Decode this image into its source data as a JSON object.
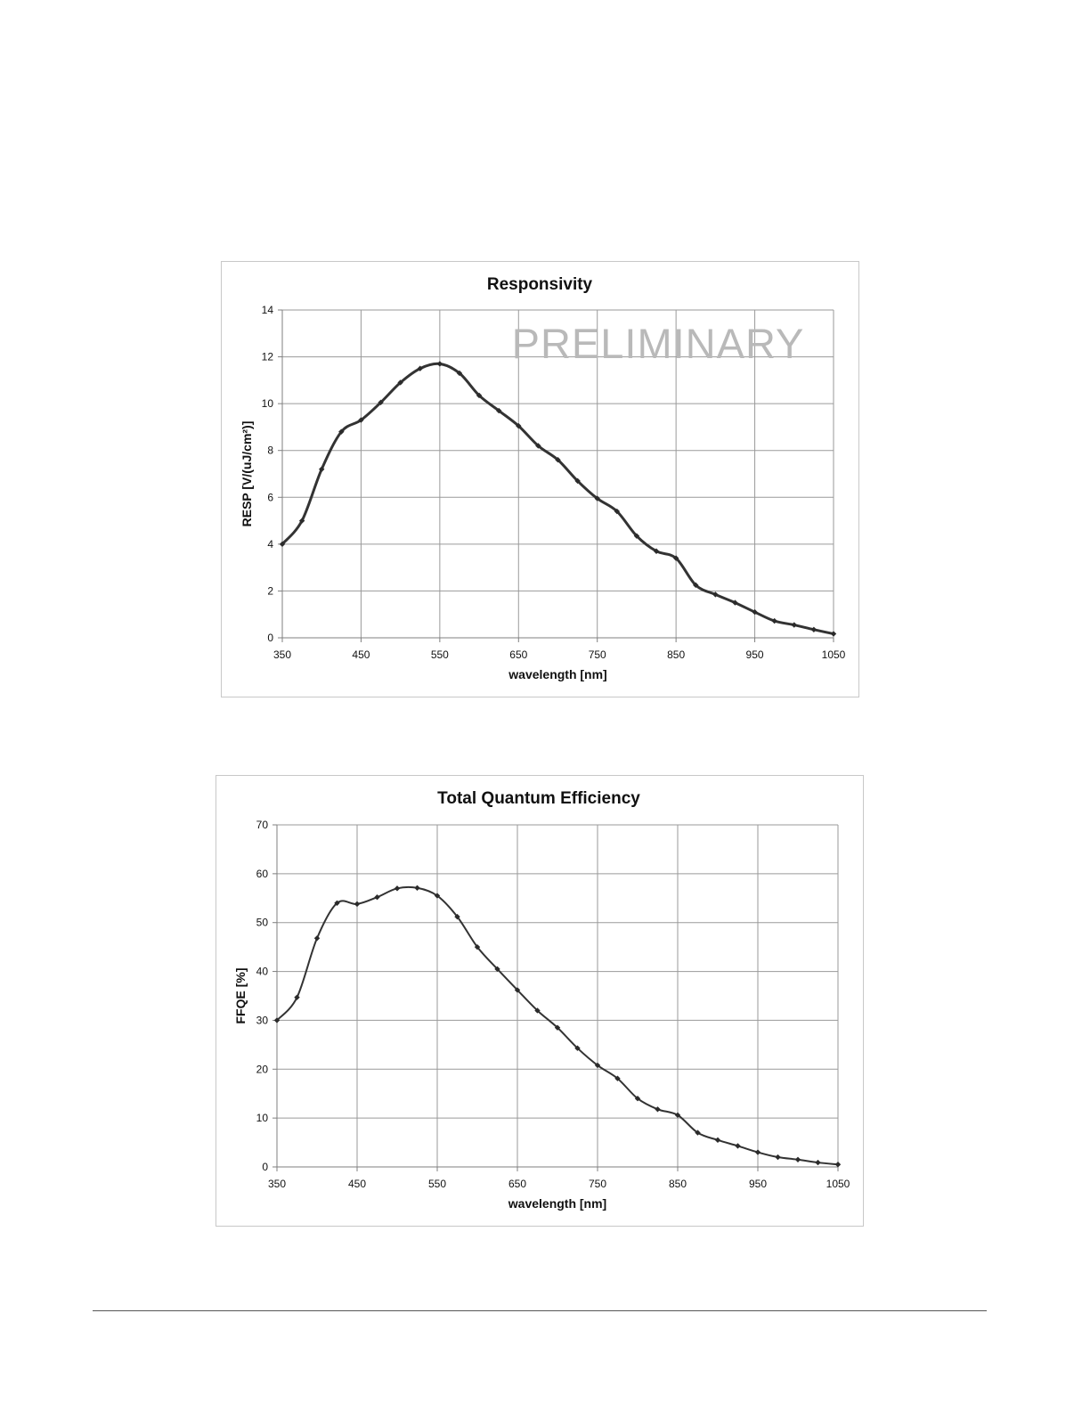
{
  "chart_data": [
    {
      "type": "line",
      "title": "Responsivity",
      "watermark": "PRELIMINARY",
      "xlabel": "wavelength [nm]",
      "ylabel": "RESP [V/(uJ/cm²)]",
      "xlim": [
        350,
        1050
      ],
      "ylim": [
        0,
        14
      ],
      "xticks": [
        350,
        450,
        550,
        650,
        750,
        850,
        950,
        1050
      ],
      "yticks": [
        0,
        2,
        4,
        6,
        8,
        10,
        12,
        14
      ],
      "grid": true,
      "legend": "none",
      "line_color": "#333333",
      "series": [
        {
          "x": [
            350,
            375,
            400,
            425,
            450,
            475,
            500,
            525,
            550,
            575,
            600,
            625,
            650,
            675,
            700,
            725,
            750,
            775,
            800,
            825,
            850,
            875,
            900,
            925,
            950,
            975,
            1000,
            1025,
            1050
          ],
          "values": [
            4.0,
            5.0,
            7.2,
            8.8,
            9.3,
            10.05,
            10.9,
            11.5,
            11.7,
            11.3,
            10.35,
            9.7,
            9.05,
            8.2,
            7.6,
            6.7,
            5.95,
            5.4,
            4.35,
            3.7,
            3.4,
            2.25,
            1.85,
            1.5,
            1.1,
            0.72,
            0.55,
            0.35,
            0.17
          ]
        }
      ]
    },
    {
      "type": "line",
      "title": "Total  Quantum  Efficiency",
      "xlabel": "wavelength [nm]",
      "ylabel": "FFQE [%]",
      "xlim": [
        350,
        1050
      ],
      "ylim": [
        0,
        70
      ],
      "xticks": [
        350,
        450,
        550,
        650,
        750,
        850,
        950,
        1050
      ],
      "yticks": [
        0,
        10,
        20,
        30,
        40,
        50,
        60,
        70
      ],
      "grid": true,
      "legend": "none",
      "line_color": "#333333",
      "series": [
        {
          "x": [
            350,
            375,
            400,
            425,
            450,
            475,
            500,
            525,
            550,
            575,
            600,
            625,
            650,
            675,
            700,
            725,
            750,
            775,
            800,
            825,
            850,
            875,
            900,
            925,
            950,
            975,
            1000,
            1025,
            1050
          ],
          "values": [
            30.0,
            34.7,
            46.8,
            54.0,
            53.8,
            55.2,
            57.0,
            57.1,
            55.5,
            51.2,
            45.0,
            40.5,
            36.2,
            32.0,
            28.5,
            24.3,
            20.8,
            18.1,
            14.0,
            11.8,
            10.6,
            7.0,
            5.5,
            4.3,
            3.0,
            2.0,
            1.5,
            0.9,
            0.5
          ]
        }
      ]
    }
  ]
}
